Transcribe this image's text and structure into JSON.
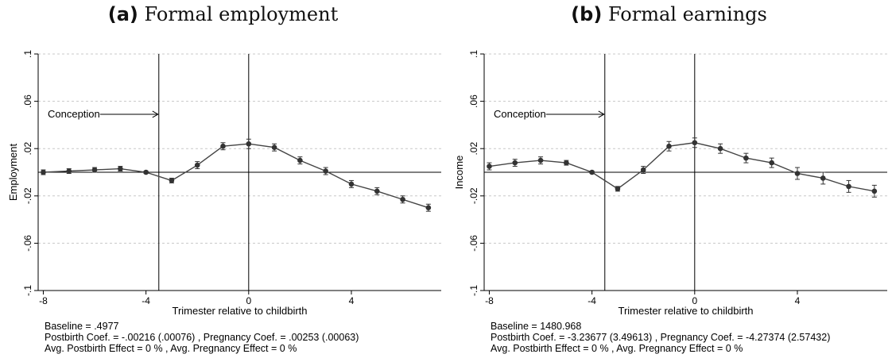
{
  "chart_data": [
    {
      "type": "scatter",
      "panel_letter": "(a)",
      "title": "Formal employment",
      "xlabel": "Trimester relative to childbirth",
      "ylabel": "Employment",
      "xlim": [
        -8.2,
        7.5
      ],
      "ylim": [
        -0.1,
        0.1
      ],
      "x_ticks": [
        -8,
        -4,
        0,
        4
      ],
      "x_tick_labels": [
        "-8",
        "-4",
        "0",
        "4"
      ],
      "y_ticks": [
        -0.1,
        -0.06,
        -0.02,
        0.02,
        0.06,
        0.1
      ],
      "y_tick_labels": [
        "-.1",
        "-.06",
        "-.02",
        ".02",
        ".06",
        ".1"
      ],
      "grid": "horizontal dashed",
      "reference_lines": {
        "vertical": [
          -3.5,
          0
        ],
        "horizontal": [
          0
        ]
      },
      "annotation": {
        "text": "Conception",
        "x": -3.5,
        "y": 0.049
      },
      "series": [
        {
          "x": [
            -8,
            -7,
            -6,
            -5,
            -4,
            -3,
            -2,
            -1,
            0,
            1,
            2,
            3,
            4,
            5,
            6,
            7
          ],
          "y": [
            0.0,
            0.001,
            0.002,
            0.003,
            0.0,
            -0.007,
            0.006,
            0.022,
            0.024,
            0.021,
            0.01,
            0.001,
            -0.01,
            -0.016,
            -0.023,
            -0.03
          ],
          "ci_low": [
            -0.002,
            -0.001,
            0.0,
            0.001,
            -0.001,
            -0.009,
            0.003,
            0.019,
            0.02,
            0.018,
            0.007,
            -0.002,
            -0.013,
            -0.019,
            -0.026,
            -0.033
          ],
          "ci_high": [
            0.002,
            0.003,
            0.004,
            0.005,
            0.001,
            -0.005,
            0.009,
            0.025,
            0.028,
            0.024,
            0.013,
            0.004,
            -0.007,
            -0.013,
            -0.02,
            -0.027
          ]
        }
      ],
      "notes": [
        "Baseline = .4977",
        "Postbirth Coef. = -.00216 (.00076) , Pregnancy Coef. = .00253 (.00063)",
        "Avg. Postbirth Effect = 0 % , Avg. Pregnancy Effect = 0 %"
      ]
    },
    {
      "type": "scatter",
      "panel_letter": "(b)",
      "title": "Formal earnings",
      "xlabel": "Trimester relative to childbirth",
      "ylabel": "Income",
      "xlim": [
        -8.2,
        7.5
      ],
      "ylim": [
        -0.1,
        0.1
      ],
      "x_ticks": [
        -8,
        -4,
        0,
        4
      ],
      "x_tick_labels": [
        "-8",
        "-4",
        "0",
        "4"
      ],
      "y_ticks": [
        -0.1,
        -0.06,
        -0.02,
        0.02,
        0.06,
        0.1
      ],
      "y_tick_labels": [
        "-.1",
        "-.06",
        "-.02",
        ".02",
        ".06",
        ".1"
      ],
      "grid": "horizontal dashed",
      "reference_lines": {
        "vertical": [
          -3.5,
          0
        ],
        "horizontal": [
          0
        ]
      },
      "annotation": {
        "text": "Conception",
        "x": -3.5,
        "y": 0.049
      },
      "series": [
        {
          "x": [
            -8,
            -7,
            -6,
            -5,
            -4,
            -3,
            -2,
            -1,
            0,
            1,
            2,
            3,
            4,
            5,
            6,
            7
          ],
          "y": [
            0.005,
            0.008,
            0.01,
            0.008,
            0.0,
            -0.014,
            0.002,
            0.022,
            0.025,
            0.02,
            0.012,
            0.008,
            -0.001,
            -0.005,
            -0.012,
            -0.016
          ],
          "ci_low": [
            0.002,
            0.005,
            0.007,
            0.006,
            -0.001,
            -0.016,
            -0.001,
            0.018,
            0.021,
            0.016,
            0.008,
            0.004,
            -0.006,
            -0.01,
            -0.017,
            -0.021
          ],
          "ci_high": [
            0.008,
            0.011,
            0.013,
            0.01,
            0.001,
            -0.012,
            0.005,
            0.026,
            0.029,
            0.024,
            0.016,
            0.012,
            0.004,
            0.0,
            -0.007,
            -0.011
          ]
        }
      ],
      "notes": [
        "Baseline = 1480.968",
        "Postbirth Coef. = -3.23677 (3.49613) , Pregnancy Coef. = -4.27374 (2.57432)",
        "Avg. Postbirth Effect = 0 % , Avg. Pregnancy Effect = 0 %"
      ]
    }
  ]
}
